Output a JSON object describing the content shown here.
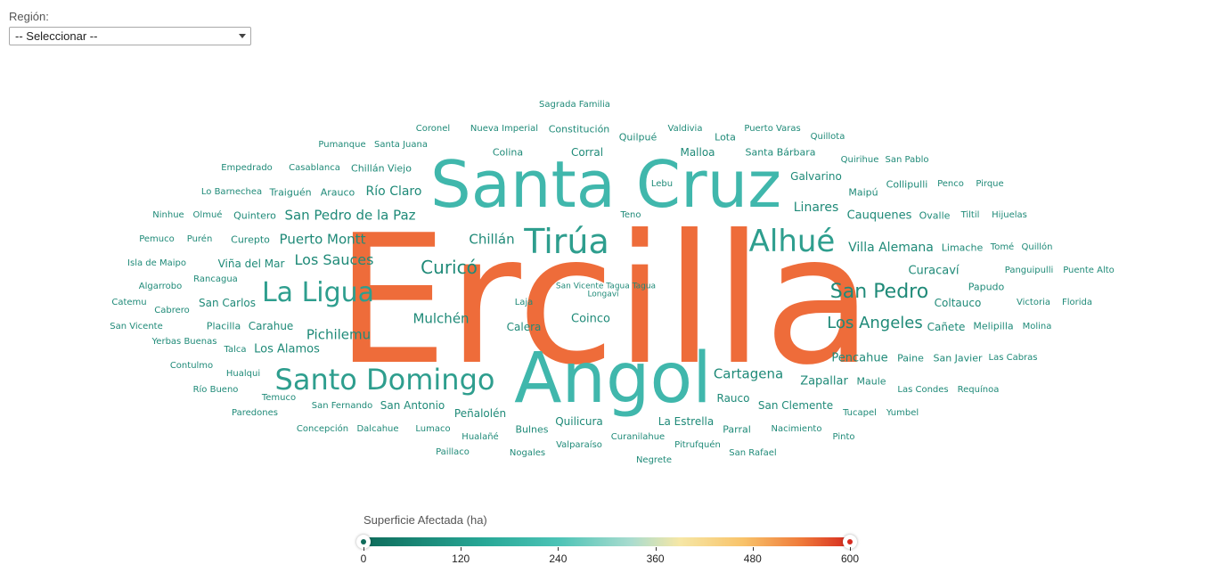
{
  "filter": {
    "label": "Región:",
    "selected": "-- Seleccionar --"
  },
  "legend": {
    "title": "Superficie Afectada (ha)",
    "min": 0,
    "max": 600,
    "ticks": [
      "0",
      "120",
      "240",
      "360",
      "480",
      "600"
    ],
    "range_low": 0,
    "range_high": 600,
    "colors": {
      "low": "#0e6b5a",
      "mid_teal": "#4cc3b6",
      "mid_yellow": "#f6e7a6",
      "high_orange": "#ef7a3a",
      "max": "#d62a1f"
    }
  },
  "words": [
    {
      "text": "Ercilla",
      "color": "#ee6c3a"
    },
    {
      "text": "Santa Cruz",
      "color": "#40b7ac"
    },
    {
      "text": "Angol",
      "color": "#40b7ac"
    },
    {
      "text": "Tirúa",
      "color": "#2e9e8e"
    },
    {
      "text": "Alhué",
      "color": "#2e9e8e"
    },
    {
      "text": "La Ligua",
      "color": "#2e9e8e"
    },
    {
      "text": "Santo Domingo",
      "color": "#2e9e8e"
    },
    {
      "text": "San Pedro",
      "color": "#1f8a78"
    },
    {
      "text": "Curicó",
      "color": "#1f8a78"
    },
    {
      "text": "Los Angeles",
      "color": "#1f8a78"
    },
    {
      "text": "Puerto Montt",
      "color": "#1f8a78"
    },
    {
      "text": "San Pedro de la Paz",
      "color": "#1f8a78"
    },
    {
      "text": "Los Sauces",
      "color": "#1f8a78"
    },
    {
      "text": "Chillán",
      "color": "#1f8a78"
    },
    {
      "text": "Mulchén",
      "color": "#1f8a78"
    },
    {
      "text": "Pichilemu",
      "color": "#1f8a78"
    },
    {
      "text": "Cartagena",
      "color": "#1f8a78"
    },
    {
      "text": "Villa Alemana",
      "color": "#1f8a78"
    },
    {
      "text": "Cauquenes",
      "color": "#1f8a78"
    },
    {
      "text": "Linares",
      "color": "#1f8a78"
    },
    {
      "text": "Río Claro",
      "color": "#1f8a78"
    },
    {
      "text": "Coinco",
      "color": "#1f8a78"
    },
    {
      "text": "Calera",
      "color": "#1f8a78"
    },
    {
      "text": "Curacaví",
      "color": "#1f8a78"
    },
    {
      "text": "Coltauco",
      "color": "#1f8a78"
    },
    {
      "text": "Pencahue",
      "color": "#1f8a78"
    },
    {
      "text": "Zapallar",
      "color": "#1f8a78"
    },
    {
      "text": "San Antonio",
      "color": "#1f8a78"
    },
    {
      "text": "Los Alamos",
      "color": "#1f8a78"
    },
    {
      "text": "Carahue",
      "color": "#1f8a78"
    },
    {
      "text": "San Carlos",
      "color": "#1f8a78"
    },
    {
      "text": "Viña del Mar",
      "color": "#1f8a78"
    },
    {
      "text": "Rauco",
      "color": "#1f8a78"
    },
    {
      "text": "San Clemente",
      "color": "#1f8a78"
    },
    {
      "text": "Quilicura",
      "color": "#1f8a78"
    },
    {
      "text": "La Estrella",
      "color": "#1f8a78"
    },
    {
      "text": "Peñalolén",
      "color": "#1f8a78"
    },
    {
      "text": "Sagrada Familia",
      "color": "#1f8a78"
    },
    {
      "text": "Coronel",
      "color": "#1f8a78"
    },
    {
      "text": "Nueva Imperial",
      "color": "#1f8a78"
    },
    {
      "text": "Constitución",
      "color": "#1f8a78"
    },
    {
      "text": "Quilpué",
      "color": "#1f8a78"
    },
    {
      "text": "Valdivia",
      "color": "#1f8a78"
    },
    {
      "text": "Lota",
      "color": "#1f8a78"
    },
    {
      "text": "Puerto Varas",
      "color": "#1f8a78"
    },
    {
      "text": "Quillota",
      "color": "#1f8a78"
    },
    {
      "text": "Pumanque",
      "color": "#1f8a78"
    },
    {
      "text": "Santa Juana",
      "color": "#1f8a78"
    },
    {
      "text": "Colina",
      "color": "#1f8a78"
    },
    {
      "text": "Corral",
      "color": "#1f8a78"
    },
    {
      "text": "Malloa",
      "color": "#1f8a78"
    },
    {
      "text": "Santa Bárbara",
      "color": "#1f8a78"
    },
    {
      "text": "Quirihue",
      "color": "#1f8a78"
    },
    {
      "text": "San Pablo",
      "color": "#1f8a78"
    },
    {
      "text": "Empedrado",
      "color": "#1f8a78"
    },
    {
      "text": "Casablanca",
      "color": "#1f8a78"
    },
    {
      "text": "Chillán Viejo",
      "color": "#1f8a78"
    },
    {
      "text": "Galvarino",
      "color": "#1f8a78"
    },
    {
      "text": "Collipulli",
      "color": "#1f8a78"
    },
    {
      "text": "Penco",
      "color": "#1f8a78"
    },
    {
      "text": "Pirque",
      "color": "#1f8a78"
    },
    {
      "text": "Lo Barnechea",
      "color": "#1f8a78"
    },
    {
      "text": "Traiguén",
      "color": "#1f8a78"
    },
    {
      "text": "Arauco",
      "color": "#1f8a78"
    },
    {
      "text": "Lebu",
      "color": "#1f8a78"
    },
    {
      "text": "Maipú",
      "color": "#1f8a78"
    },
    {
      "text": "Ninhue",
      "color": "#1f8a78"
    },
    {
      "text": "Olmué",
      "color": "#1f8a78"
    },
    {
      "text": "Quintero",
      "color": "#1f8a78"
    },
    {
      "text": "Teno",
      "color": "#1f8a78"
    },
    {
      "text": "Ovalle",
      "color": "#1f8a78"
    },
    {
      "text": "Tiltil",
      "color": "#1f8a78"
    },
    {
      "text": "Hijuelas",
      "color": "#1f8a78"
    },
    {
      "text": "Pemuco",
      "color": "#1f8a78"
    },
    {
      "text": "Purén",
      "color": "#1f8a78"
    },
    {
      "text": "Curepto",
      "color": "#1f8a78"
    },
    {
      "text": "Limache",
      "color": "#1f8a78"
    },
    {
      "text": "Tomé",
      "color": "#1f8a78"
    },
    {
      "text": "Quillón",
      "color": "#1f8a78"
    },
    {
      "text": "Isla de Maipo",
      "color": "#1f8a78"
    },
    {
      "text": "Panguipulli",
      "color": "#1f8a78"
    },
    {
      "text": "Puente Alto",
      "color": "#1f8a78"
    },
    {
      "text": "Rancagua",
      "color": "#1f8a78"
    },
    {
      "text": "Algarrobo",
      "color": "#1f8a78"
    },
    {
      "text": "Papudo",
      "color": "#1f8a78"
    },
    {
      "text": "San Vicente Tagua Tagua",
      "color": "#1f8a78"
    },
    {
      "text": "Longaví",
      "color": "#1f8a78"
    },
    {
      "text": "Catemu",
      "color": "#1f8a78"
    },
    {
      "text": "Cabrero",
      "color": "#1f8a78"
    },
    {
      "text": "Laja",
      "color": "#1f8a78"
    },
    {
      "text": "Victoria",
      "color": "#1f8a78"
    },
    {
      "text": "Florida",
      "color": "#1f8a78"
    },
    {
      "text": "San Vicente",
      "color": "#1f8a78"
    },
    {
      "text": "Placilla",
      "color": "#1f8a78"
    },
    {
      "text": "Cañete",
      "color": "#1f8a78"
    },
    {
      "text": "Melipilla",
      "color": "#1f8a78"
    },
    {
      "text": "Molina",
      "color": "#1f8a78"
    },
    {
      "text": "Yerbas Buenas",
      "color": "#1f8a78"
    },
    {
      "text": "Talca",
      "color": "#1f8a78"
    },
    {
      "text": "Paine",
      "color": "#1f8a78"
    },
    {
      "text": "San Javier",
      "color": "#1f8a78"
    },
    {
      "text": "Las Cabras",
      "color": "#1f8a78"
    },
    {
      "text": "Contulmo",
      "color": "#1f8a78"
    },
    {
      "text": "Hualqui",
      "color": "#1f8a78"
    },
    {
      "text": "Maule",
      "color": "#1f8a78"
    },
    {
      "text": "Río Bueno",
      "color": "#1f8a78"
    },
    {
      "text": "Temuco",
      "color": "#1f8a78"
    },
    {
      "text": "Las Condes",
      "color": "#1f8a78"
    },
    {
      "text": "Requínoa",
      "color": "#1f8a78"
    },
    {
      "text": "San Fernando",
      "color": "#1f8a78"
    },
    {
      "text": "Paredones",
      "color": "#1f8a78"
    },
    {
      "text": "Tucapel",
      "color": "#1f8a78"
    },
    {
      "text": "Yumbel",
      "color": "#1f8a78"
    },
    {
      "text": "Concepción",
      "color": "#1f8a78"
    },
    {
      "text": "Dalcahue",
      "color": "#1f8a78"
    },
    {
      "text": "Lumaco",
      "color": "#1f8a78"
    },
    {
      "text": "Bulnes",
      "color": "#1f8a78"
    },
    {
      "text": "Parral",
      "color": "#1f8a78"
    },
    {
      "text": "Nacimiento",
      "color": "#1f8a78"
    },
    {
      "text": "Hualañé",
      "color": "#1f8a78"
    },
    {
      "text": "Curanilahue",
      "color": "#1f8a78"
    },
    {
      "text": "Pinto",
      "color": "#1f8a78"
    },
    {
      "text": "Valparaíso",
      "color": "#1f8a78"
    },
    {
      "text": "Pitrufquén",
      "color": "#1f8a78"
    },
    {
      "text": "Paillaco",
      "color": "#1f8a78"
    },
    {
      "text": "Nogales",
      "color": "#1f8a78"
    },
    {
      "text": "San Rafael",
      "color": "#1f8a78"
    },
    {
      "text": "Negrete",
      "color": "#1f8a78"
    }
  ]
}
